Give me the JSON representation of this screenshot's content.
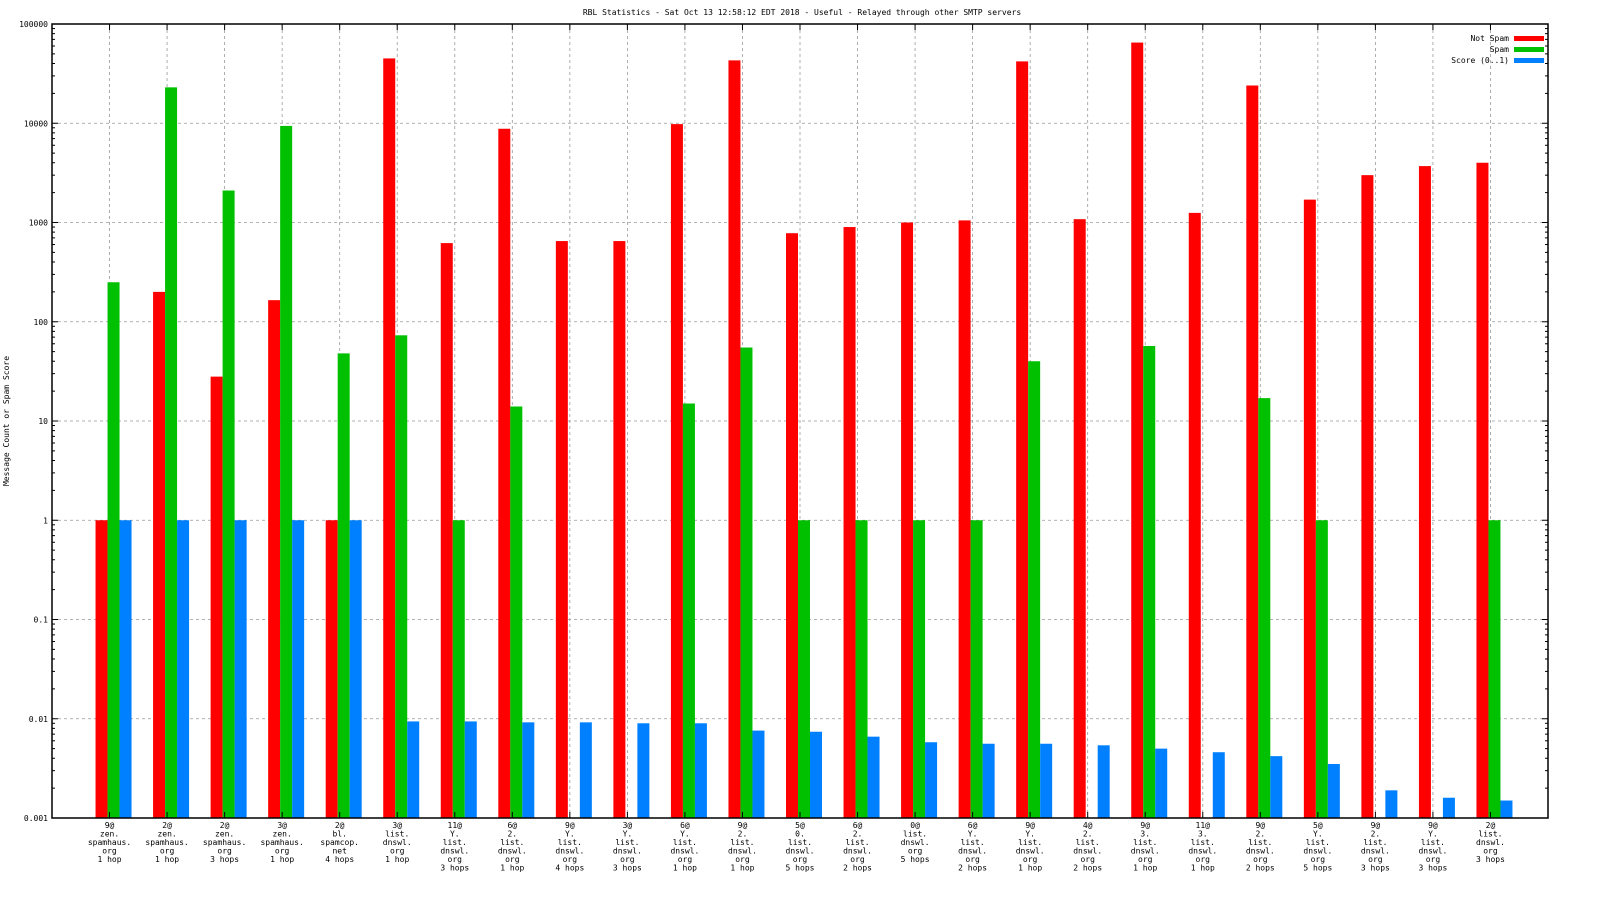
{
  "chart_data": {
    "type": "bar",
    "title": "RBL Statistics - Sat Oct 13 12:58:12 EDT 2018 - Useful - Relayed through other SMTP servers",
    "xlabel": "",
    "ylabel": "Message Count or Spam Score",
    "yscale": "log",
    "ylim": [
      0.001,
      100000
    ],
    "yticks": [
      "0.001",
      "0.01",
      "0.1",
      "1",
      "10",
      "100",
      "1000",
      "10000",
      "100000"
    ],
    "grid": true,
    "legend_position": "top-right",
    "categories": [
      [
        "9@",
        "zen.",
        "spamhaus.",
        "org",
        "1 hop"
      ],
      [
        "2@",
        "zen.",
        "spamhaus.",
        "org",
        "1 hop"
      ],
      [
        "2@",
        "zen.",
        "spamhaus.",
        "org",
        "3 hops"
      ],
      [
        "3@",
        "zen.",
        "spamhaus.",
        "org",
        "1 hop"
      ],
      [
        "2@",
        "bl.",
        "spamcop.",
        "net",
        "4 hops"
      ],
      [
        "3@",
        "list.",
        "dnswl.",
        "org",
        "1 hop"
      ],
      [
        "11@",
        "Y.",
        "list.",
        "dnswl.",
        "org",
        "3 hops"
      ],
      [
        "6@",
        "2.",
        "list.",
        "dnswl.",
        "org",
        "1 hop"
      ],
      [
        "9@",
        "Y.",
        "list.",
        "dnswl.",
        "org",
        "4 hops"
      ],
      [
        "3@",
        "Y.",
        "list.",
        "dnswl.",
        "org",
        "3 hops"
      ],
      [
        "6@",
        "Y.",
        "list.",
        "dnswl.",
        "org",
        "1 hop"
      ],
      [
        "9@",
        "2.",
        "list.",
        "dnswl.",
        "org",
        "1 hop"
      ],
      [
        "5@",
        "0.",
        "list.",
        "dnswl.",
        "org",
        "5 hops"
      ],
      [
        "6@",
        "2.",
        "list.",
        "dnswl.",
        "org",
        "2 hops"
      ],
      [
        "0@",
        "list.",
        "dnswl.",
        "org",
        "5 hops"
      ],
      [
        "6@",
        "Y.",
        "list.",
        "dnswl.",
        "org",
        "2 hops"
      ],
      [
        "9@",
        "Y.",
        "list.",
        "dnswl.",
        "org",
        "1 hop"
      ],
      [
        "4@",
        "2.",
        "list.",
        "dnswl.",
        "org",
        "2 hops"
      ],
      [
        "9@",
        "3.",
        "list.",
        "dnswl.",
        "org",
        "1 hop"
      ],
      [
        "11@",
        "3.",
        "list.",
        "dnswl.",
        "org",
        "1 hop"
      ],
      [
        "9@",
        "2.",
        "list.",
        "dnswl.",
        "org",
        "2 hops"
      ],
      [
        "5@",
        "Y.",
        "list.",
        "dnswl.",
        "org",
        "5 hops"
      ],
      [
        "9@",
        "2.",
        "list.",
        "dnswl.",
        "org",
        "3 hops"
      ],
      [
        "9@",
        "Y.",
        "list.",
        "dnswl.",
        "org",
        "3 hops"
      ],
      [
        "2@",
        "list.",
        "dnswl.",
        "org",
        "3 hops"
      ]
    ],
    "series": [
      {
        "name": "Not Spam",
        "color": "#ff0000",
        "values": [
          1,
          200,
          28,
          165,
          1,
          45000,
          620,
          8800,
          650,
          650,
          9800,
          43000,
          780,
          900,
          1000,
          1050,
          42000,
          1080,
          65000,
          1250,
          24000,
          1700,
          3000,
          3700,
          4000
        ]
      },
      {
        "name": "Spam",
        "color": "#00c000",
        "values": [
          250,
          23000,
          2100,
          9400,
          48,
          73,
          1,
          14,
          0,
          0,
          15,
          55,
          1,
          1,
          1,
          1,
          40,
          0,
          57,
          0,
          17,
          1,
          0,
          0,
          1
        ]
      },
      {
        "name": "Score (0..1)",
        "color": "#0080ff",
        "values": [
          1,
          1,
          1,
          1,
          1,
          0.0094,
          0.0094,
          0.0092,
          0.0092,
          0.009,
          0.009,
          0.0076,
          0.0074,
          0.0066,
          0.0058,
          0.0056,
          0.0056,
          0.0054,
          0.005,
          0.0046,
          0.0042,
          0.0035,
          0.0019,
          0.0016,
          0.0015
        ]
      }
    ]
  }
}
